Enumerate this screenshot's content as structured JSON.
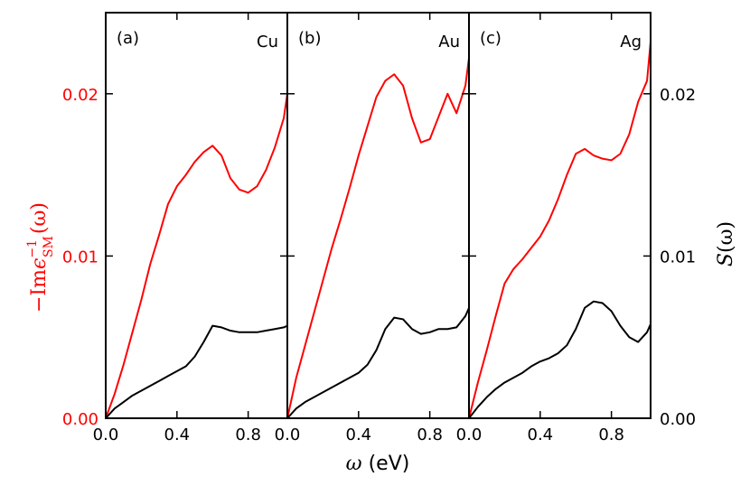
{
  "chart_data": {
    "type": "line",
    "xlabel": {
      "symbol": "ω",
      "unit": "(eV)"
    },
    "ylabel_left": {
      "prefix": "−Im",
      "eps": "ϵ",
      "sup": "−1",
      "sub": "SM",
      "arg": "(ω)",
      "color": "#ff0000"
    },
    "ylabel_right": {
      "sym": "S",
      "arg": "(ω)",
      "color": "#000000"
    },
    "ylim": [
      0,
      0.025
    ],
    "yticks": [
      0.0,
      0.01,
      0.02
    ],
    "ytick_labels_left": [
      "0.00",
      "0.01",
      "0.02"
    ],
    "ytick_labels_right": [
      "0.00",
      "0.01",
      "0.02"
    ],
    "panels": [
      {
        "label": "(a)",
        "metal": "Cu",
        "xlim": [
          0,
          1.02
        ],
        "xticks": [
          0.0,
          0.4,
          0.8
        ],
        "xtick_labels": [
          "0.0",
          "0.4",
          "0.8"
        ],
        "series": [
          {
            "name": "-Im eps_SM^-1",
            "color": "#ff0000",
            "x": [
              0,
              0.05,
              0.1,
              0.15,
              0.2,
              0.25,
              0.3,
              0.35,
              0.4,
              0.45,
              0.5,
              0.55,
              0.6,
              0.65,
              0.7,
              0.75,
              0.8,
              0.85,
              0.9,
              0.95,
              1.0,
              1.02
            ],
            "y": [
              0,
              0.0015,
              0.0033,
              0.0053,
              0.0073,
              0.0095,
              0.0113,
              0.0132,
              0.0143,
              0.015,
              0.0158,
              0.0164,
              0.0168,
              0.0162,
              0.0148,
              0.0141,
              0.0139,
              0.0143,
              0.0153,
              0.0167,
              0.0185,
              0.02
            ]
          },
          {
            "name": "S",
            "color": "#000000",
            "x": [
              0,
              0.05,
              0.1,
              0.15,
              0.2,
              0.25,
              0.3,
              0.35,
              0.4,
              0.45,
              0.5,
              0.55,
              0.6,
              0.65,
              0.7,
              0.75,
              0.8,
              0.85,
              0.9,
              0.95,
              1.0,
              1.02
            ],
            "y": [
              0,
              0.0006,
              0.001,
              0.0014,
              0.0017,
              0.002,
              0.0023,
              0.0026,
              0.0029,
              0.0032,
              0.0038,
              0.0047,
              0.0057,
              0.0056,
              0.0054,
              0.0053,
              0.0053,
              0.0053,
              0.0054,
              0.0055,
              0.0056,
              0.0057
            ]
          }
        ]
      },
      {
        "label": "(b)",
        "metal": "Au",
        "xlim": [
          0,
          1.02
        ],
        "xticks": [
          0.0,
          0.4,
          0.8
        ],
        "xtick_labels": [
          "0.0",
          "0.4",
          "0.8"
        ],
        "series": [
          {
            "name": "-Im eps_SM^-1",
            "color": "#ff0000",
            "x": [
              0,
              0.05,
              0.1,
              0.15,
              0.2,
              0.25,
              0.3,
              0.35,
              0.4,
              0.45,
              0.5,
              0.55,
              0.6,
              0.65,
              0.7,
              0.75,
              0.8,
              0.85,
              0.9,
              0.95,
              1.0,
              1.02
            ],
            "y": [
              0,
              0.0025,
              0.0045,
              0.0065,
              0.0085,
              0.0105,
              0.0123,
              0.0142,
              0.0162,
              0.018,
              0.0198,
              0.0208,
              0.0212,
              0.0205,
              0.0185,
              0.017,
              0.0172,
              0.0186,
              0.02,
              0.0188,
              0.0205,
              0.0222
            ]
          },
          {
            "name": "S",
            "color": "#000000",
            "x": [
              0,
              0.05,
              0.1,
              0.15,
              0.2,
              0.25,
              0.3,
              0.35,
              0.4,
              0.45,
              0.5,
              0.55,
              0.6,
              0.65,
              0.7,
              0.75,
              0.8,
              0.85,
              0.9,
              0.95,
              1.0,
              1.02
            ],
            "y": [
              0,
              0.0006,
              0.001,
              0.0013,
              0.0016,
              0.0019,
              0.0022,
              0.0025,
              0.0028,
              0.0033,
              0.0042,
              0.0055,
              0.0062,
              0.0061,
              0.0055,
              0.0052,
              0.0053,
              0.0055,
              0.0055,
              0.0056,
              0.0063,
              0.0068
            ]
          }
        ]
      },
      {
        "label": "(c)",
        "metal": "Ag",
        "xlim": [
          0,
          1.02
        ],
        "xticks": [
          0.0,
          0.4,
          0.8
        ],
        "xtick_labels": [
          "0.0",
          "0.4",
          "0.8"
        ],
        "series": [
          {
            "name": "-Im eps_SM^-1",
            "color": "#ff0000",
            "x": [
              0,
              0.05,
              0.1,
              0.15,
              0.2,
              0.25,
              0.3,
              0.35,
              0.4,
              0.45,
              0.5,
              0.55,
              0.6,
              0.65,
              0.7,
              0.75,
              0.8,
              0.85,
              0.9,
              0.95,
              1.0,
              1.02
            ],
            "y": [
              0,
              0.0022,
              0.0042,
              0.0063,
              0.0083,
              0.0092,
              0.0098,
              0.0105,
              0.0112,
              0.0122,
              0.0135,
              0.015,
              0.0163,
              0.0166,
              0.0162,
              0.016,
              0.0159,
              0.0163,
              0.0175,
              0.0195,
              0.0208,
              0.0232
            ]
          },
          {
            "name": "S",
            "color": "#000000",
            "x": [
              0,
              0.05,
              0.1,
              0.15,
              0.2,
              0.25,
              0.3,
              0.35,
              0.4,
              0.45,
              0.5,
              0.55,
              0.6,
              0.65,
              0.7,
              0.75,
              0.8,
              0.85,
              0.9,
              0.95,
              1.0,
              1.02
            ],
            "y": [
              0,
              0.0007,
              0.0013,
              0.0018,
              0.0022,
              0.0025,
              0.0028,
              0.0032,
              0.0035,
              0.0037,
              0.004,
              0.0045,
              0.0055,
              0.0068,
              0.0072,
              0.0071,
              0.0066,
              0.0057,
              0.005,
              0.0047,
              0.0053,
              0.0058
            ]
          }
        ]
      }
    ]
  }
}
